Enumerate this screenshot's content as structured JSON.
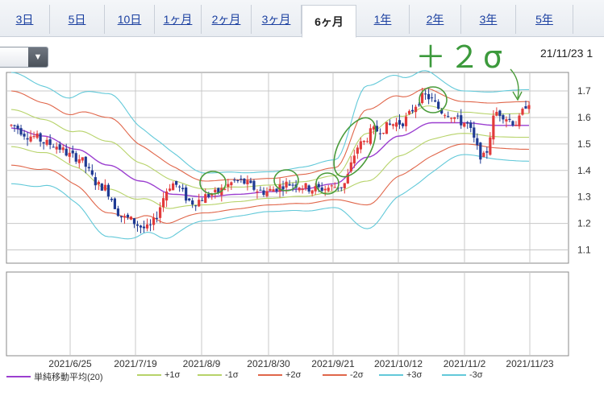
{
  "tabs": [
    {
      "label": "3日"
    },
    {
      "label": "5日"
    },
    {
      "label": "10日"
    },
    {
      "label": "1ヶ月"
    },
    {
      "label": "2ヶ月"
    },
    {
      "label": "3ヶ月"
    },
    {
      "label": "6ヶ月",
      "active": true
    },
    {
      "label": "1年"
    },
    {
      "label": "2年"
    },
    {
      "label": "3年"
    },
    {
      "label": "5年"
    }
  ],
  "dropdown": {
    "icon": "triangle-down-icon",
    "value": ""
  },
  "date_label": "21/11/23 1",
  "annotation": "＋２σ",
  "colors": {
    "up": "#e23b3b",
    "down": "#1f3a93",
    "sma": "#9b3fd0",
    "sigma1": "#b7d36a",
    "sigma2": "#e0664a",
    "sigma3": "#62c9d9",
    "grid": "#c8c8c8",
    "annot": "#4a9b3a"
  },
  "chart_data": {
    "type": "candlestick-bollinger",
    "ylim": [
      1.05,
      1.77
    ],
    "yticks": [
      "1.7",
      "1.6",
      "1.5",
      "1.4",
      "1.3",
      "1.2",
      "1.1"
    ],
    "xticks": [
      "2021/6/25",
      "2021/7/19",
      "2021/8/9",
      "2021/8/30",
      "2021/9/21",
      "2021/10/12",
      "2021/11/2",
      "2021/11/23"
    ],
    "legend": [
      {
        "label": "単純移動平均(20)",
        "color": "#9b3fd0"
      },
      {
        "label": "+1σ",
        "color": "#b7d36a"
      },
      {
        "label": "-1σ",
        "color": "#b7d36a"
      },
      {
        "label": "+2σ",
        "color": "#e0664a"
      },
      {
        "label": "-2σ",
        "color": "#e0664a"
      },
      {
        "label": "+3σ",
        "color": "#62c9d9"
      },
      {
        "label": "-3σ",
        "color": "#62c9d9"
      }
    ],
    "series_profile": {
      "sma": [
        [
          0,
          1.56
        ],
        [
          10,
          1.53
        ],
        [
          20,
          1.48
        ],
        [
          30,
          1.42
        ],
        [
          40,
          1.36
        ],
        [
          50,
          1.31
        ],
        [
          60,
          1.3
        ],
        [
          70,
          1.31
        ],
        [
          80,
          1.32
        ],
        [
          90,
          1.33
        ],
        [
          100,
          1.35
        ],
        [
          110,
          1.45
        ],
        [
          120,
          1.53
        ],
        [
          130,
          1.58
        ],
        [
          140,
          1.58
        ],
        [
          150,
          1.57
        ],
        [
          160,
          1.57
        ]
      ],
      "sigma": [
        [
          0,
          0.07
        ],
        [
          15,
          0.06
        ],
        [
          30,
          0.09
        ],
        [
          45,
          0.06
        ],
        [
          60,
          0.03
        ],
        [
          80,
          0.025
        ],
        [
          100,
          0.03
        ],
        [
          110,
          0.09
        ],
        [
          125,
          0.07
        ],
        [
          140,
          0.04
        ],
        [
          160,
          0.045
        ]
      ],
      "close": [
        [
          0,
          1.57
        ],
        [
          6,
          1.53
        ],
        [
          12,
          1.5
        ],
        [
          20,
          1.45
        ],
        [
          28,
          1.34
        ],
        [
          35,
          1.22
        ],
        [
          42,
          1.18
        ],
        [
          50,
          1.35
        ],
        [
          56,
          1.28
        ],
        [
          62,
          1.31
        ],
        [
          70,
          1.36
        ],
        [
          78,
          1.32
        ],
        [
          86,
          1.35
        ],
        [
          94,
          1.33
        ],
        [
          102,
          1.34
        ],
        [
          108,
          1.5
        ],
        [
          112,
          1.55
        ],
        [
          120,
          1.58
        ],
        [
          128,
          1.68
        ],
        [
          134,
          1.62
        ],
        [
          140,
          1.58
        ],
        [
          146,
          1.45
        ],
        [
          150,
          1.62
        ],
        [
          156,
          1.58
        ],
        [
          160,
          1.66
        ]
      ]
    },
    "candle_count": 161
  }
}
